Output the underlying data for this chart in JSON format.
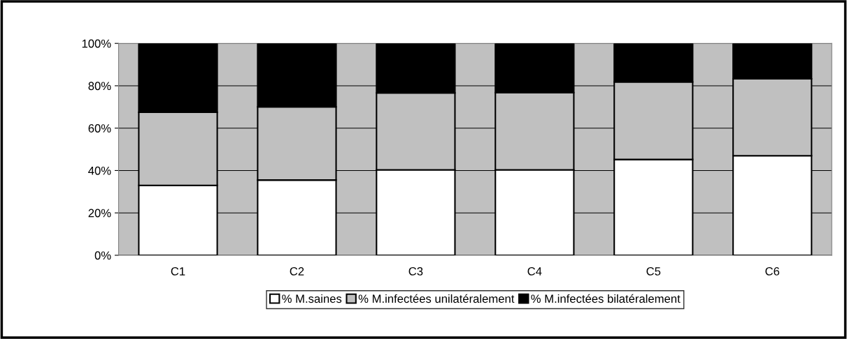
{
  "chart_data": {
    "type": "bar",
    "stacked": true,
    "categories": [
      "C1",
      "C2",
      "C3",
      "C4",
      "C5",
      "C6"
    ],
    "series": [
      {
        "name": "% M.saines",
        "color": "#ffffff",
        "values": [
          33.0,
          35.5,
          40.3,
          40.3,
          45.2,
          47.0
        ]
      },
      {
        "name": "% M.infectées unilatéralement",
        "color": "#c0c0c0",
        "values": [
          34.5,
          34.5,
          36.3,
          36.5,
          36.6,
          36.3
        ]
      },
      {
        "name": "% M.infectées bilatéralement",
        "color": "#000000",
        "values": [
          32.5,
          30.0,
          23.4,
          23.2,
          18.2,
          16.7
        ]
      }
    ],
    "ylim": [
      0,
      100
    ],
    "yticks": [
      {
        "value": 0,
        "label": "0%"
      },
      {
        "value": 20,
        "label": "20%"
      },
      {
        "value": 40,
        "label": "40%"
      },
      {
        "value": 60,
        "label": "60%"
      },
      {
        "value": 80,
        "label": "80%"
      },
      {
        "value": 100,
        "label": "100%"
      }
    ],
    "grid": "y",
    "legend": "bottom"
  }
}
